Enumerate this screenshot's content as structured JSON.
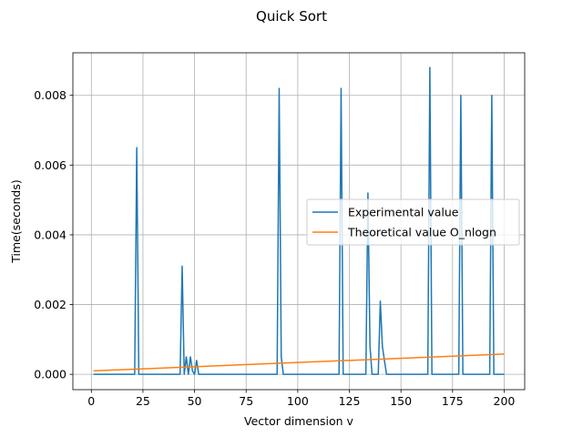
{
  "chart_data": {
    "type": "line",
    "title": "Quick Sort",
    "xlabel": "Vector dimension v",
    "ylabel": "Time(seconds)",
    "xlim": [
      -8.95,
      209.95
    ],
    "ylim": [
      -0.00044,
      0.00922
    ],
    "xticks": [
      0,
      25,
      50,
      75,
      100,
      125,
      150,
      175,
      200
    ],
    "yticks": [
      0.0,
      0.002,
      0.004,
      0.006,
      0.008
    ],
    "ytick_labels": [
      "0.000",
      "0.002",
      "0.004",
      "0.006",
      "0.008"
    ],
    "grid": true,
    "legend_position": "center-right",
    "series": [
      {
        "name": "Experimental value",
        "color": "#1f77b4",
        "x": [
          1,
          21,
          22,
          23,
          43,
          44,
          45,
          46,
          47,
          48,
          49,
          50,
          51,
          52,
          53,
          90,
          91,
          92,
          93,
          120,
          121,
          122,
          133,
          134,
          135,
          136,
          139,
          140,
          141,
          142,
          143,
          163,
          164,
          165,
          178,
          179,
          180,
          193,
          194,
          195,
          200
        ],
        "y": [
          0.0,
          0.0,
          0.0065,
          0.0,
          0.0,
          0.0031,
          0.0,
          0.0005,
          0.0,
          0.0005,
          0.0001,
          0.0,
          0.0004,
          0.0,
          0.0,
          0.0,
          0.0082,
          0.0005,
          0.0,
          0.0,
          0.0082,
          0.0,
          0.0,
          0.0052,
          0.0008,
          0.0,
          0.0,
          0.0021,
          0.0008,
          0.0004,
          0.0,
          0.0,
          0.0088,
          0.0,
          0.0,
          0.008,
          0.0,
          0.0,
          0.008,
          0.0,
          0.0
        ]
      },
      {
        "name": "Theoretical value O_nlogn",
        "color": "#ff7f0e",
        "x": [
          1,
          200
        ],
        "y": [
          0.0001,
          0.00058
        ]
      }
    ]
  }
}
